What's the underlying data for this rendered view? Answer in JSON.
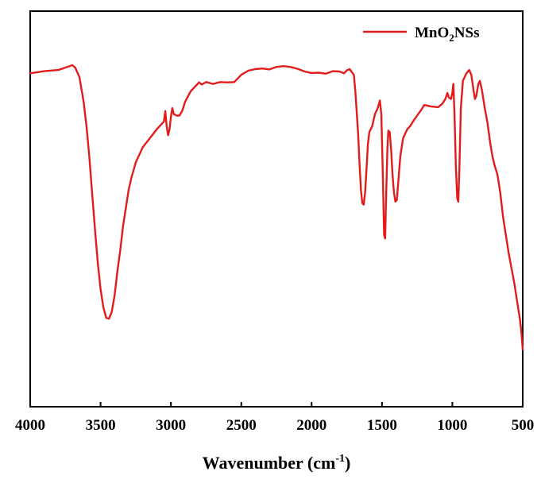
{
  "chart_data": {
    "type": "line",
    "xlabel": {
      "base": "Wavenumber (cm",
      "superscript": "-1",
      "close": ")"
    },
    "ylabel": "",
    "xlim": [
      4000,
      500
    ],
    "x_reversed": true,
    "x_ticks": [
      4000,
      3500,
      3000,
      2500,
      2000,
      1500,
      1000,
      500
    ],
    "y_ticks_shown": false,
    "ylim": [
      0,
      100
    ],
    "grid": false,
    "legend": {
      "placement": "top-right",
      "label_main": "MnO",
      "label_sub": "2",
      "label_tail": "NSs"
    },
    "series": [
      {
        "name": "MnO2NSs",
        "color": "#e41b1b",
        "points": [
          [
            4000,
            91.5
          ],
          [
            3900,
            92.2
          ],
          [
            3800,
            92.6
          ],
          [
            3750,
            93.4
          ],
          [
            3700,
            94.2
          ],
          [
            3680,
            93.4
          ],
          [
            3650,
            90.2
          ],
          [
            3620,
            82.0
          ],
          [
            3600,
            74.0
          ],
          [
            3580,
            64.0
          ],
          [
            3560,
            52.0
          ],
          [
            3540,
            40.0
          ],
          [
            3520,
            29.0
          ],
          [
            3500,
            20.0
          ],
          [
            3480,
            14.0
          ],
          [
            3460,
            10.5
          ],
          [
            3440,
            10.2
          ],
          [
            3420,
            12.5
          ],
          [
            3400,
            18.0
          ],
          [
            3380,
            26.0
          ],
          [
            3360,
            33.0
          ],
          [
            3340,
            41.0
          ],
          [
            3320,
            47.0
          ],
          [
            3300,
            53.0
          ],
          [
            3280,
            57.0
          ],
          [
            3250,
            62.0
          ],
          [
            3200,
            67.0
          ],
          [
            3150,
            70.0
          ],
          [
            3100,
            73.0
          ],
          [
            3050,
            75.5
          ],
          [
            3040,
            79.0
          ],
          [
            3030,
            74.0
          ],
          [
            3020,
            71.0
          ],
          [
            3010,
            73.0
          ],
          [
            3000,
            77.0
          ],
          [
            2990,
            80.0
          ],
          [
            2980,
            78.0
          ],
          [
            2960,
            77.5
          ],
          [
            2940,
            77.5
          ],
          [
            2920,
            79.0
          ],
          [
            2900,
            82.0
          ],
          [
            2860,
            85.5
          ],
          [
            2820,
            87.5
          ],
          [
            2800,
            88.5
          ],
          [
            2780,
            87.8
          ],
          [
            2750,
            88.6
          ],
          [
            2700,
            88.0
          ],
          [
            2650,
            88.6
          ],
          [
            2600,
            88.5
          ],
          [
            2550,
            88.6
          ],
          [
            2500,
            91.0
          ],
          [
            2450,
            92.4
          ],
          [
            2400,
            92.9
          ],
          [
            2350,
            93.1
          ],
          [
            2300,
            92.8
          ],
          [
            2250,
            93.6
          ],
          [
            2200,
            93.9
          ],
          [
            2150,
            93.6
          ],
          [
            2100,
            93.0
          ],
          [
            2050,
            92.1
          ],
          [
            2000,
            91.6
          ],
          [
            1950,
            91.7
          ],
          [
            1900,
            91.4
          ],
          [
            1850,
            92.2
          ],
          [
            1800,
            92.1
          ],
          [
            1770,
            91.5
          ],
          [
            1750,
            92.5
          ],
          [
            1730,
            92.9
          ],
          [
            1700,
            91.0
          ],
          [
            1690,
            86.0
          ],
          [
            1670,
            72.0
          ],
          [
            1660,
            62.0
          ],
          [
            1650,
            53.0
          ],
          [
            1640,
            48.5
          ],
          [
            1630,
            48.0
          ],
          [
            1620,
            52.0
          ],
          [
            1610,
            60.0
          ],
          [
            1600,
            68.0
          ],
          [
            1590,
            72.0
          ],
          [
            1570,
            74.0
          ],
          [
            1550,
            78.0
          ],
          [
            1530,
            80.0
          ],
          [
            1515,
            82.5
          ],
          [
            1505,
            78.0
          ],
          [
            1495,
            60.0
          ],
          [
            1485,
            38.0
          ],
          [
            1478,
            36.8
          ],
          [
            1470,
            52.0
          ],
          [
            1462,
            66.0
          ],
          [
            1455,
            72.5
          ],
          [
            1445,
            72.0
          ],
          [
            1435,
            66.0
          ],
          [
            1425,
            58.0
          ],
          [
            1415,
            52.0
          ],
          [
            1405,
            49.0
          ],
          [
            1395,
            49.5
          ],
          [
            1385,
            55.0
          ],
          [
            1370,
            64.0
          ],
          [
            1350,
            70.0
          ],
          [
            1320,
            73.0
          ],
          [
            1300,
            74.0
          ],
          [
            1280,
            75.5
          ],
          [
            1250,
            77.5
          ],
          [
            1220,
            79.5
          ],
          [
            1200,
            81.0
          ],
          [
            1150,
            80.5
          ],
          [
            1100,
            80.3
          ],
          [
            1070,
            81.5
          ],
          [
            1050,
            83.0
          ],
          [
            1035,
            85.0
          ],
          [
            1025,
            83.5
          ],
          [
            1010,
            83.0
          ],
          [
            1000,
            85.0
          ],
          [
            993,
            88.0
          ],
          [
            985,
            78.0
          ],
          [
            975,
            60.0
          ],
          [
            965,
            50.0
          ],
          [
            958,
            49.0
          ],
          [
            950,
            60.0
          ],
          [
            940,
            80.0
          ],
          [
            925,
            89.0
          ],
          [
            900,
            91.5
          ],
          [
            880,
            92.6
          ],
          [
            865,
            91.0
          ],
          [
            850,
            86.0
          ],
          [
            840,
            83.0
          ],
          [
            830,
            84.0
          ],
          [
            815,
            88.0
          ],
          [
            805,
            89.0
          ],
          [
            790,
            86.0
          ],
          [
            770,
            80.0
          ],
          [
            750,
            75.0
          ],
          [
            730,
            68.0
          ],
          [
            715,
            64.0
          ],
          [
            700,
            61.0
          ],
          [
            680,
            58.0
          ],
          [
            660,
            52.0
          ],
          [
            640,
            44.0
          ],
          [
            620,
            38.0
          ],
          [
            600,
            32.0
          ],
          [
            580,
            27.0
          ],
          [
            560,
            22.0
          ],
          [
            540,
            16.0
          ],
          [
            520,
            10.0
          ],
          [
            510,
            6.0
          ],
          [
            505,
            3.0
          ],
          [
            500,
            0.0
          ]
        ]
      }
    ]
  }
}
